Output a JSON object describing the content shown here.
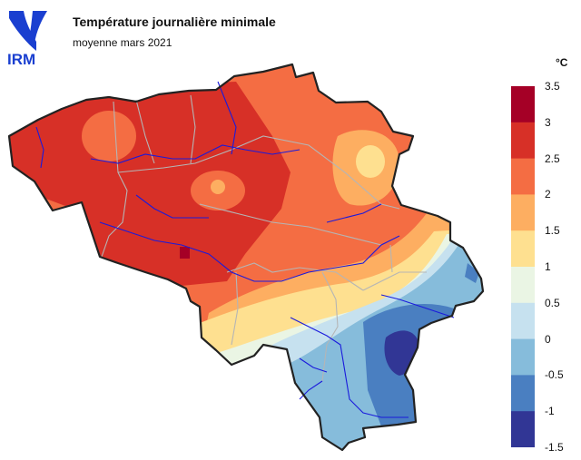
{
  "logo": {
    "text": "IRM",
    "icon": "irm-logo-icon",
    "color": "#1a3fd0"
  },
  "header": {
    "title": "Température journalière minimale",
    "subtitle": "moyenne mars 2021"
  },
  "legend": {
    "unit": "°C",
    "ticks": [
      "3.5",
      "3",
      "2.5",
      "2",
      "1.5",
      "1",
      "0.5",
      "0",
      "-0.5",
      "-1",
      "-1.5"
    ],
    "classes": [
      {
        "range": [
          3,
          3.5
        ],
        "color": "#a50026"
      },
      {
        "range": [
          2.5,
          3
        ],
        "color": "#d73027"
      },
      {
        "range": [
          2,
          2.5
        ],
        "color": "#f46d43"
      },
      {
        "range": [
          1.5,
          2
        ],
        "color": "#fdae61"
      },
      {
        "range": [
          1,
          1.5
        ],
        "color": "#fee090"
      },
      {
        "range": [
          0.5,
          1
        ],
        "color": "#eaf5e4"
      },
      {
        "range": [
          0,
          0.5
        ],
        "color": "#c6e1ef"
      },
      {
        "range": [
          -0.5,
          0
        ],
        "color": "#86bcdb"
      },
      {
        "range": [
          -1,
          -0.5
        ],
        "color": "#4a7fc1"
      },
      {
        "range": [
          -1.5,
          -1
        ],
        "color": "#313695"
      }
    ]
  },
  "map": {
    "region": "Belgique",
    "border_color": "#222222",
    "province_line_color": "#b5b5b5",
    "river_color": "#1a1adc"
  }
}
